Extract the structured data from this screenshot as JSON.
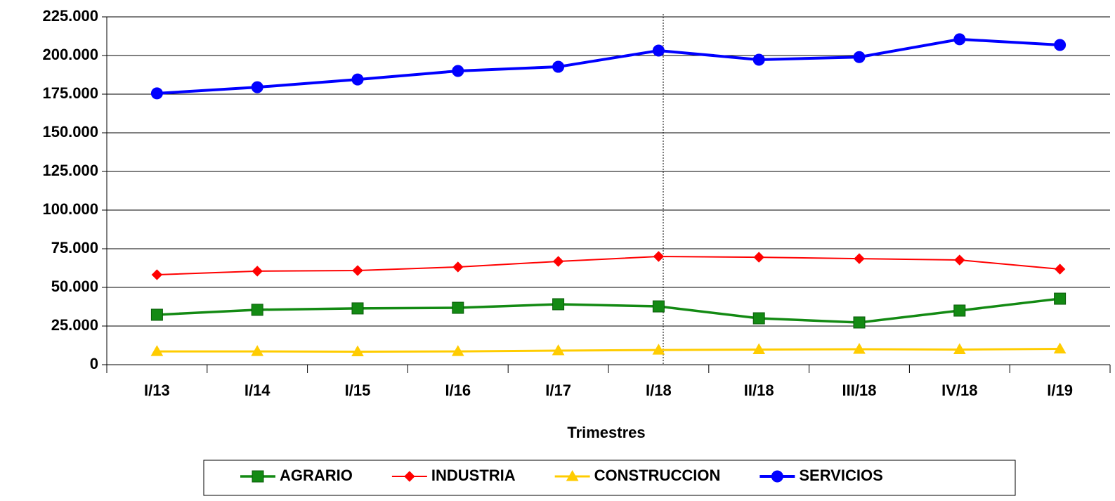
{
  "chart_data": {
    "type": "line",
    "x_label": "Trimestres",
    "categories": [
      "I/13",
      "I/14",
      "I/15",
      "I/16",
      "I/17",
      "I/18",
      "II/18",
      "III/18",
      "IV/18",
      "I/19"
    ],
    "series": [
      {
        "name": "AGRARIO",
        "color": "#138a13",
        "marker": "square",
        "values": [
          32300,
          35500,
          36400,
          36800,
          39100,
          37700,
          30000,
          27300,
          35000,
          42700
        ]
      },
      {
        "name": "INDUSTRIA",
        "color": "#ff0000",
        "marker": "diamond",
        "values": [
          58200,
          60500,
          60900,
          63200,
          66800,
          70000,
          69500,
          68600,
          67700,
          61800
        ]
      },
      {
        "name": "CONSTRUCCION",
        "color": "#ffcc00",
        "marker": "triangle",
        "values": [
          8600,
          8600,
          8400,
          8600,
          9100,
          9500,
          9800,
          10000,
          9800,
          10200
        ]
      },
      {
        "name": "SERVICIOS",
        "color": "#0000ff",
        "marker": "circle",
        "values": [
          175500,
          179500,
          184500,
          190000,
          192700,
          203200,
          197300,
          199000,
          210500,
          206800
        ]
      }
    ],
    "ylim": [
      0,
      225000
    ],
    "yticks": [
      0,
      {
        "value": 25000,
        "label": "25.000"
      },
      {
        "value": 50000,
        "label": "50.000"
      },
      {
        "value": 75000,
        "label": "75.000"
      },
      {
        "value": 100000,
        "label": "100.000"
      },
      {
        "value": 125000,
        "label": "125.000"
      },
      {
        "value": 150000,
        "label": "150.000"
      },
      {
        "value": 175000,
        "label": "175.000"
      },
      {
        "value": 200000,
        "label": "200.000"
      },
      {
        "value": 225000,
        "label": "225.000"
      }
    ],
    "grid": true,
    "legend": "bottom"
  }
}
